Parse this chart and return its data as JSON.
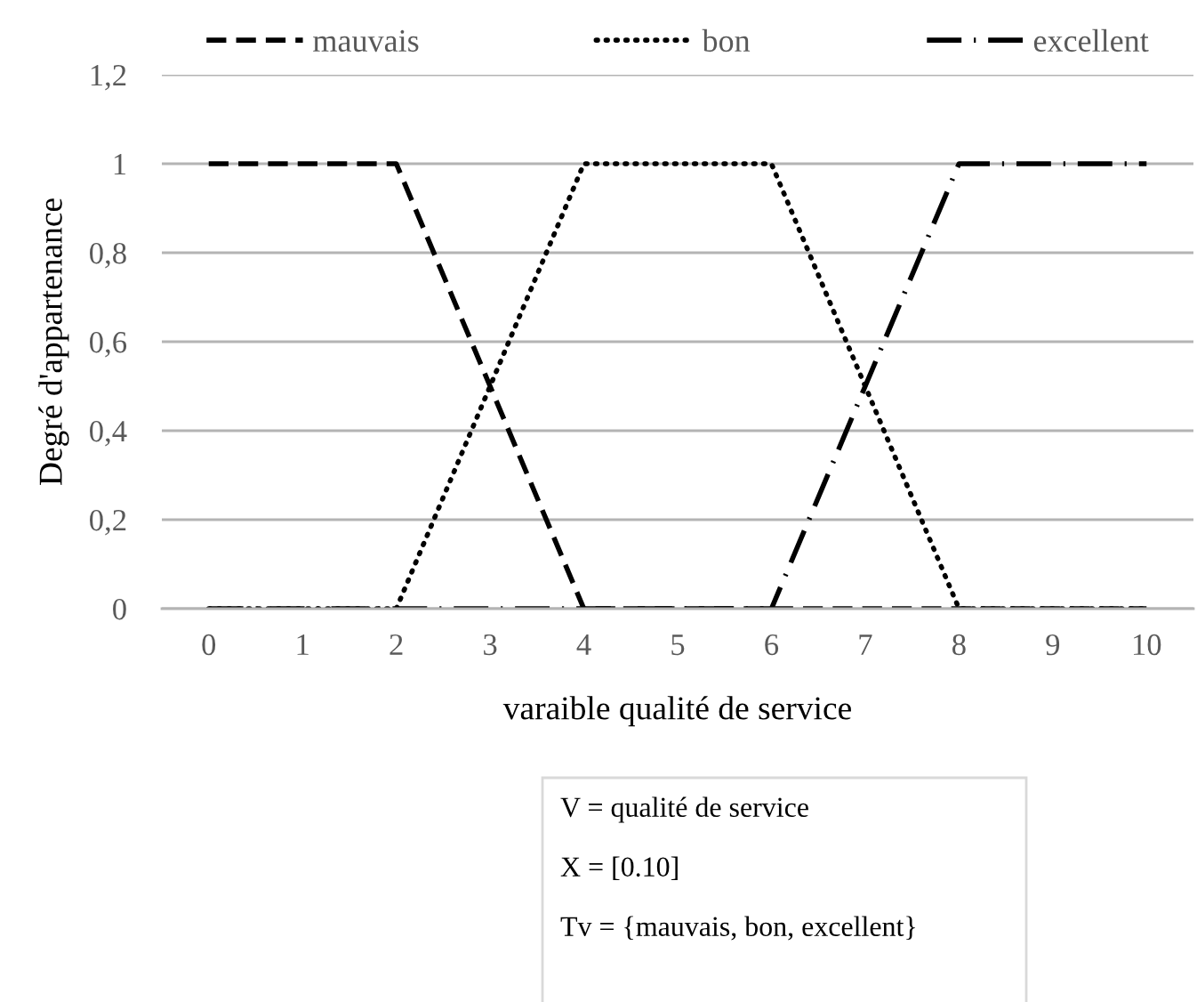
{
  "chart_data": {
    "type": "line",
    "categories": [
      "0",
      "1",
      "2",
      "3",
      "4",
      "5",
      "6",
      "7",
      "8",
      "9",
      "10"
    ],
    "xlabel": "varaible qualité de service",
    "ylabel": "Degré d'appartenance",
    "ylim": [
      0,
      1.2
    ],
    "yticks": [
      0,
      {
        "value": 0.2,
        "label": "0,2"
      },
      {
        "value": 0.4,
        "label": "0,4"
      },
      {
        "value": 0.6,
        "label": "0,6"
      },
      {
        "value": 0.8,
        "label": "0,8"
      },
      1,
      {
        "value": 1.2,
        "label": "1,2"
      }
    ],
    "grid": "y",
    "legend": "top",
    "series": [
      {
        "name": "mauvais",
        "color": "#000000",
        "line_style": "dashed",
        "values": [
          1,
          1,
          1,
          0.5,
          0,
          0,
          0,
          0,
          0,
          0,
          0
        ]
      },
      {
        "name": "bon",
        "color": "#000000",
        "line_style": "dotted",
        "values": [
          0,
          0,
          0,
          0.5,
          1,
          1,
          1,
          0.5,
          0,
          0,
          0
        ]
      },
      {
        "name": "excellent",
        "color": "#000000",
        "line_style": "dashdot",
        "values": [
          0,
          0,
          0,
          0,
          0,
          0,
          0,
          0.5,
          1,
          1,
          1
        ]
      }
    ],
    "annotations": [
      "V = qualité de service",
      "X = [0.10]",
      "Tv = {mauvais, bon, excellent}"
    ]
  }
}
